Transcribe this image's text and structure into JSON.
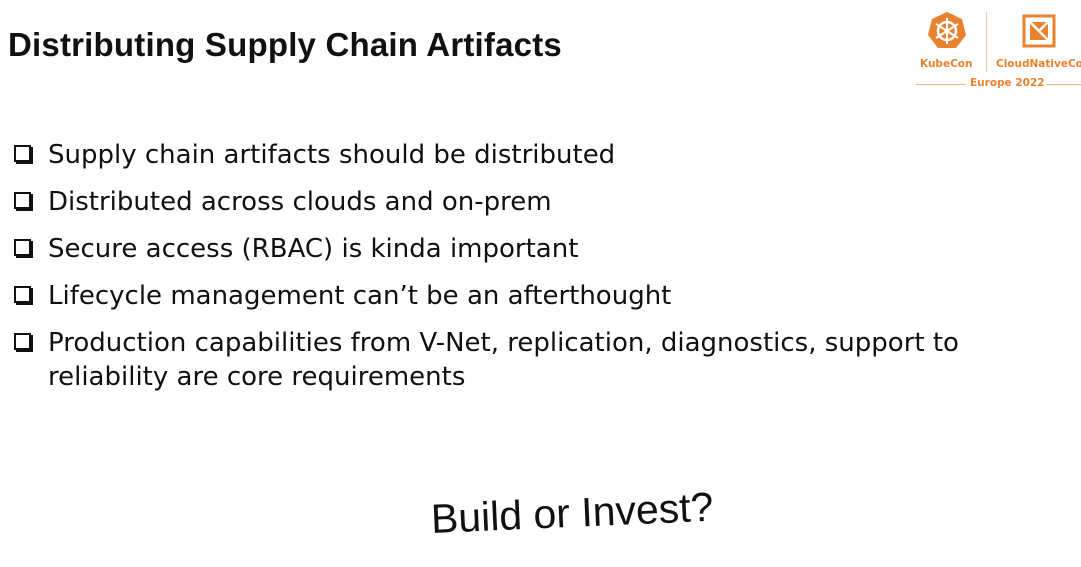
{
  "slide": {
    "title": "Distributing Supply Chain Artifacts",
    "bullets": [
      "Supply chain artifacts should be distributed",
      "Distributed across clouds and on-prem",
      "Secure access (RBAC) is kinda important",
      "Lifecycle management can’t be an afterthought",
      "Production capabilities from V-Net, replication, diagnostics, support to reliability are core requirements"
    ],
    "closing_question": "Build or Invest?"
  },
  "logo": {
    "left_brand": "KubeCon",
    "right_brand": "CloudNativeCon",
    "event": "Europe 2022",
    "left_icon": "kubernetes-helm-icon",
    "right_icon": "cncf-icon",
    "accent_color": "#e8822e"
  },
  "icons": {
    "bullet_icon": "checkbox-icon"
  }
}
